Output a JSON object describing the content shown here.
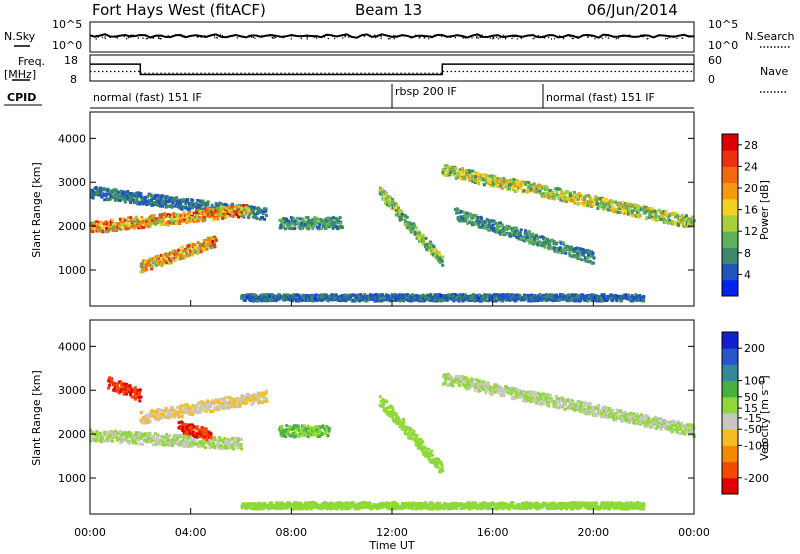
{
  "header": {
    "title": "Fort Hays West (fitACF)",
    "beam": "Beam 13",
    "date": "06/Jun/2014"
  },
  "params": {
    "nsky_label": "N.Sky",
    "nsearch_label": "N.Search",
    "freq_label": "Freq.",
    "freq_unit": "[MHz]",
    "nave_label": "Nave",
    "cpid_label": "CPID",
    "nsky_ticks": [
      "10^5",
      "10^0"
    ],
    "nsearch_ticks": [
      "10^5",
      "10^0"
    ],
    "freq_ticks": [
      "18",
      "8"
    ],
    "nave_ticks": [
      "60",
      "0"
    ]
  },
  "cpid_segments": [
    {
      "label": "normal (fast) 151 IF",
      "start_hour": 0
    },
    {
      "label": "rbsp 200 IF",
      "start_hour": 12
    },
    {
      "label": "normal (fast) 151 IF",
      "start_hour": 18
    }
  ],
  "xaxis": {
    "label": "Time UT",
    "ticks": [
      "00:00",
      "04:00",
      "08:00",
      "12:00",
      "16:00",
      "20:00",
      "00:00"
    ]
  },
  "colors": {
    "power": [
      "#0022ee",
      "#2255bb",
      "#3a8a6a",
      "#5fb05a",
      "#a8cf3a",
      "#f4d020",
      "#f59a10",
      "#f26a10",
      "#ee3010",
      "#dd0000"
    ],
    "velocity": [
      "#e00000",
      "#f34a00",
      "#f58a00",
      "#f5be20",
      "#c8c8c0",
      "#8fd83a",
      "#47b040",
      "#33889a",
      "#2856c8",
      "#1020d0"
    ]
  },
  "chart_data": [
    {
      "type": "heatmap",
      "name": "power",
      "xlabel": "Time UT",
      "ylabel": "Slant Range [km]",
      "xlim": [
        0,
        24
      ],
      "ylim": [
        180,
        4600
      ],
      "yticks": [
        "1000",
        "2000",
        "3000",
        "4000"
      ],
      "colorbar": {
        "label": "Power [dB]",
        "ticks": [
          "4",
          "8",
          "12",
          "16",
          "20",
          "24",
          "28"
        ],
        "range": [
          0,
          30
        ]
      },
      "features": [
        {
          "desc": "upper band",
          "t_start": 0.0,
          "t_end": 7.0,
          "range_start_km": 2800,
          "range_end_km": 2300,
          "peak_db": 9
        },
        {
          "desc": "main band",
          "t_start": 0.0,
          "t_end": 6.3,
          "range_start_km": 2000,
          "range_end_km": 2400,
          "peak_db": 28
        },
        {
          "desc": "main band dip",
          "t_start": 2.0,
          "t_end": 5.0,
          "range_start_km": 1100,
          "range_end_km": 1700,
          "peak_db": 28
        },
        {
          "desc": "patch",
          "t_start": 7.5,
          "t_end": 10.0,
          "range_start_km": 2100,
          "range_end_km": 2100,
          "peak_db": 12
        },
        {
          "desc": "descending band",
          "t_start": 11.5,
          "t_end": 14.0,
          "range_start_km": 2800,
          "range_end_km": 1200,
          "peak_db": 16
        },
        {
          "desc": "upper arc",
          "t_start": 14.0,
          "t_end": 24.0,
          "range_start_km": 3300,
          "range_end_km": 2100,
          "peak_db": 20
        },
        {
          "desc": "lower arcs",
          "t_start": 14.5,
          "t_end": 20.0,
          "range_start_km": 2300,
          "range_end_km": 1300,
          "peak_db": 12
        },
        {
          "desc": "ground scatter",
          "t_start": 6.0,
          "t_end": 22.0,
          "range_start_km": 400,
          "range_end_km": 400,
          "peak_db": 8
        }
      ]
    },
    {
      "type": "heatmap",
      "name": "velocity",
      "xlabel": "Time UT",
      "ylabel": "Slant Range [km]",
      "xlim": [
        0,
        24
      ],
      "ylim": [
        180,
        4600
      ],
      "yticks": [
        "1000",
        "2000",
        "3000",
        "4000"
      ],
      "colorbar": {
        "label": "Velocity [m s⁻¹]",
        "ticks": [
          "200",
          "100",
          "50",
          "15",
          "-15",
          "-50",
          "-100",
          "-200"
        ],
        "range": [
          -250,
          250
        ]
      },
      "features": [
        {
          "desc": "gray band",
          "t_start": 0.0,
          "t_end": 6.0,
          "range_start_km": 2000,
          "range_end_km": 1800,
          "velocity": 0
        },
        {
          "desc": "red upper",
          "t_start": 0.7,
          "t_end": 2.0,
          "range_start_km": 3200,
          "range_end_km": 2900,
          "velocity": -200
        },
        {
          "desc": "red patch",
          "t_start": 3.5,
          "t_end": 4.8,
          "range_start_km": 2200,
          "range_end_km": 2000,
          "velocity": -200
        },
        {
          "desc": "orange band",
          "t_start": 2.0,
          "t_end": 7.0,
          "range_start_km": 2400,
          "range_end_km": 2900,
          "velocity": -50
        },
        {
          "desc": "green patch",
          "t_start": 7.5,
          "t_end": 9.5,
          "range_start_km": 2100,
          "range_end_km": 2100,
          "velocity": 50
        },
        {
          "desc": "green descending",
          "t_start": 11.5,
          "t_end": 14.0,
          "range_start_km": 2800,
          "range_end_km": 1200,
          "velocity": 30
        },
        {
          "desc": "gray arcs",
          "t_start": 14.0,
          "t_end": 24.0,
          "range_start_km": 3300,
          "range_end_km": 2100,
          "velocity": 0
        },
        {
          "desc": "ground scatter",
          "t_start": 6.0,
          "t_end": 22.0,
          "range_start_km": 400,
          "range_end_km": 400,
          "velocity": 30
        }
      ]
    }
  ]
}
